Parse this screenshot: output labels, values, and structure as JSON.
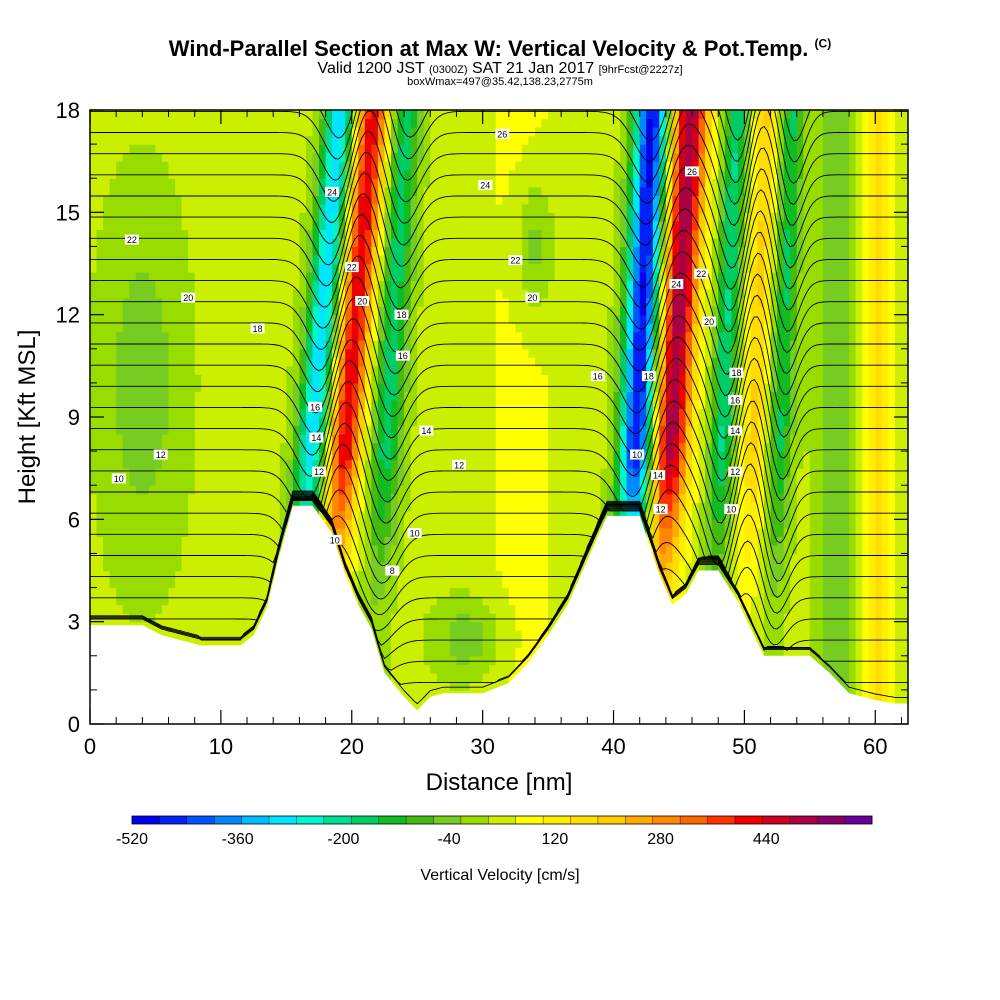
{
  "header": {
    "title_main": "Wind-Parallel Section at Max W: Vertical Velocity & Pot.Temp.",
    "title_mark": "(C)",
    "valid_a": "Valid 1200 JST",
    "valid_b": "(0300Z)",
    "valid_c": "SAT 21 Jan 2017",
    "valid_d": "[9hrFcst@2227z]",
    "box": "boxWmax=497@35.42,138.23,2775m"
  },
  "chart_data": {
    "type": "heatmap",
    "xlabel": "Distance [nm]",
    "ylabel": "Height [Kft MSL]",
    "xlim": [
      0,
      62.5
    ],
    "ylim": [
      0,
      18
    ],
    "x_ticks": [
      "0",
      "10",
      "20",
      "30",
      "40",
      "50",
      "60"
    ],
    "y_ticks": [
      "0",
      "3",
      "6",
      "9",
      "12",
      "15",
      "18"
    ],
    "colorbar_label": "Vertical Velocity [cm/s]",
    "colorbar_ticks": [
      "-520",
      "-360",
      "-200",
      "-40",
      "120",
      "280",
      "440"
    ],
    "colorbar_range": [
      -520,
      600
    ],
    "colorbar_step": 40,
    "colorbar_colors": [
      "#0000ee",
      "#0022f5",
      "#0055ff",
      "#0088ff",
      "#00bbff",
      "#00e5ff",
      "#00f5cc",
      "#00dd99",
      "#00cc66",
      "#11bb22",
      "#44bb11",
      "#77cc22",
      "#99dd00",
      "#ccee00",
      "#ffff00",
      "#ffee00",
      "#ffdd00",
      "#ffcc00",
      "#ffaa00",
      "#ff8800",
      "#ff6600",
      "#ff3300",
      "#ee0000",
      "#cc0022",
      "#aa0044",
      "#880066",
      "#660099"
    ],
    "updraft_maximum": {
      "value_cm_s": 497,
      "lat": 35.42,
      "lon": 138.23,
      "height_m": 2775
    },
    "terrain": [
      {
        "x": 0,
        "h": 2.9
      },
      {
        "x": 4,
        "h": 2.9
      },
      {
        "x": 5.5,
        "h": 2.6
      },
      {
        "x": 8.5,
        "h": 2.3
      },
      {
        "x": 11.5,
        "h": 2.3
      },
      {
        "x": 12.5,
        "h": 2.6
      },
      {
        "x": 13.5,
        "h": 3.4
      },
      {
        "x": 14.5,
        "h": 5.0
      },
      {
        "x": 15.5,
        "h": 6.4
      },
      {
        "x": 17,
        "h": 6.4
      },
      {
        "x": 18.5,
        "h": 5.6
      },
      {
        "x": 19.5,
        "h": 4.4
      },
      {
        "x": 20.5,
        "h": 3.5
      },
      {
        "x": 21.5,
        "h": 2.8
      },
      {
        "x": 22.5,
        "h": 1.5
      },
      {
        "x": 24,
        "h": 0.8
      },
      {
        "x": 25,
        "h": 0.4
      },
      {
        "x": 26,
        "h": 0.8
      },
      {
        "x": 27,
        "h": 0.9
      },
      {
        "x": 28,
        "h": 0.9
      },
      {
        "x": 30,
        "h": 0.9
      },
      {
        "x": 32,
        "h": 1.2
      },
      {
        "x": 33.5,
        "h": 1.8
      },
      {
        "x": 35,
        "h": 2.6
      },
      {
        "x": 36.5,
        "h": 3.5
      },
      {
        "x": 38,
        "h": 4.8
      },
      {
        "x": 39.5,
        "h": 6.1
      },
      {
        "x": 42,
        "h": 6.1
      },
      {
        "x": 43.5,
        "h": 4.4
      },
      {
        "x": 44.5,
        "h": 3.5
      },
      {
        "x": 45.5,
        "h": 3.8
      },
      {
        "x": 46.5,
        "h": 4.5
      },
      {
        "x": 48,
        "h": 4.5
      },
      {
        "x": 49.5,
        "h": 3.6
      },
      {
        "x": 50.5,
        "h": 2.8
      },
      {
        "x": 51.5,
        "h": 2.0
      },
      {
        "x": 55,
        "h": 2.0
      },
      {
        "x": 56.5,
        "h": 1.5
      },
      {
        "x": 58,
        "h": 0.9
      },
      {
        "x": 60,
        "h": 0.7
      },
      {
        "x": 61.5,
        "h": 0.6
      },
      {
        "x": 62.5,
        "h": 0.6
      }
    ],
    "vertical_velocity_features": [
      {
        "name": "downdraft-1",
        "x0": 16.5,
        "lean": 0.22,
        "width": 1.2,
        "amp": -340
      },
      {
        "name": "updraft-1",
        "x0": 19.0,
        "lean": 0.22,
        "width": 1.3,
        "amp": 400
      },
      {
        "name": "downdraft-2",
        "x0": 22.3,
        "lean": 0.15,
        "width": 1.2,
        "amp": -200
      },
      {
        "name": "downdraft-3",
        "x0": 41.5,
        "lean": 0.12,
        "width": 1.3,
        "amp": -520
      },
      {
        "name": "updraft-2",
        "x0": 44.0,
        "lean": 0.16,
        "width": 1.4,
        "amp": 480
      },
      {
        "name": "downdraft-4",
        "x0": 48.0,
        "lean": 0.12,
        "width": 0.9,
        "amp": -220
      },
      {
        "name": "downdraft-5",
        "x0": 52.5,
        "lean": 0.1,
        "width": 0.9,
        "amp": -180
      },
      {
        "name": "updraft-3",
        "x0": 50.5,
        "lean": 0.1,
        "width": 0.9,
        "amp": 160
      }
    ],
    "isentrope_labels": [
      {
        "text": "26",
        "x": 31.5,
        "y": 17.3
      },
      {
        "text": "24",
        "x": 18.5,
        "y": 15.6
      },
      {
        "text": "24",
        "x": 30.2,
        "y": 15.8
      },
      {
        "text": "22",
        "x": 3.2,
        "y": 14.2
      },
      {
        "text": "22",
        "x": 20.0,
        "y": 13.4
      },
      {
        "text": "22",
        "x": 32.5,
        "y": 13.6
      },
      {
        "text": "20",
        "x": 7.5,
        "y": 12.5
      },
      {
        "text": "20",
        "x": 20.8,
        "y": 12.4
      },
      {
        "text": "20",
        "x": 33.8,
        "y": 12.5
      },
      {
        "text": "18",
        "x": 12.8,
        "y": 11.6
      },
      {
        "text": "18",
        "x": 23.8,
        "y": 12.0
      },
      {
        "text": "16",
        "x": 23.9,
        "y": 10.8
      },
      {
        "text": "16",
        "x": 38.8,
        "y": 10.2
      },
      {
        "text": "16",
        "x": 17.2,
        "y": 9.3
      },
      {
        "text": "14",
        "x": 17.3,
        "y": 8.4
      },
      {
        "text": "14",
        "x": 25.7,
        "y": 8.6
      },
      {
        "text": "12",
        "x": 5.4,
        "y": 7.9
      },
      {
        "text": "12",
        "x": 17.5,
        "y": 7.4
      },
      {
        "text": "12",
        "x": 28.2,
        "y": 7.6
      },
      {
        "text": "10",
        "x": 2.2,
        "y": 7.2
      },
      {
        "text": "10",
        "x": 24.8,
        "y": 5.6
      },
      {
        "text": "10",
        "x": 18.7,
        "y": 5.4
      },
      {
        "text": "8",
        "x": 23.1,
        "y": 4.5
      },
      {
        "text": "26",
        "x": 46.0,
        "y": 16.2
      },
      {
        "text": "24",
        "x": 44.8,
        "y": 12.9
      },
      {
        "text": "22",
        "x": 46.7,
        "y": 13.2
      },
      {
        "text": "20",
        "x": 47.3,
        "y": 11.8
      },
      {
        "text": "18",
        "x": 49.4,
        "y": 10.3
      },
      {
        "text": "18",
        "x": 42.7,
        "y": 10.2
      },
      {
        "text": "16",
        "x": 49.3,
        "y": 9.5
      },
      {
        "text": "14",
        "x": 49.3,
        "y": 8.6
      },
      {
        "text": "14",
        "x": 43.4,
        "y": 7.3
      },
      {
        "text": "12",
        "x": 49.3,
        "y": 7.4
      },
      {
        "text": "12",
        "x": 43.6,
        "y": 6.3
      },
      {
        "text": "10",
        "x": 41.8,
        "y": 7.9
      },
      {
        "text": "10",
        "x": 49.0,
        "y": 6.3
      }
    ]
  }
}
